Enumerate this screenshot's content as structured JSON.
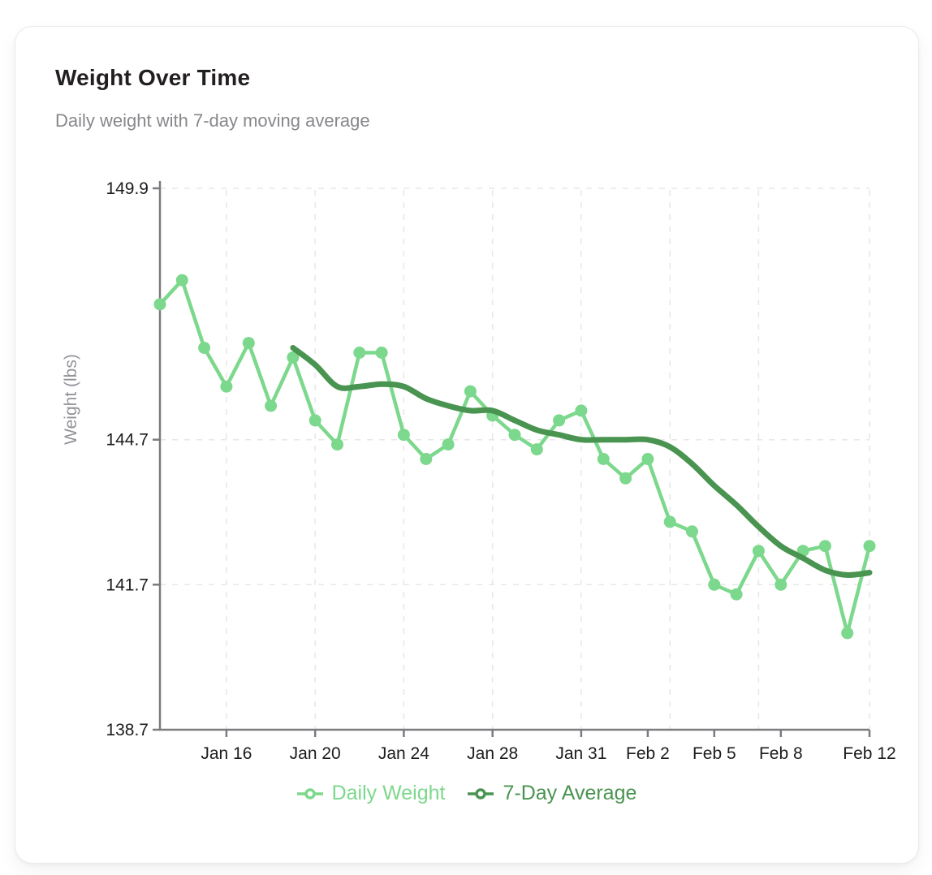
{
  "card": {
    "title": "Weight Over Time",
    "subtitle": "Daily weight with 7-day moving average"
  },
  "chart_data": {
    "type": "line",
    "title": "Weight Over Time",
    "subtitle": "Daily weight with 7-day moving average",
    "xlabel": "",
    "ylabel": "Weight (lbs)",
    "ylim": [
      138.7,
      149.9
    ],
    "y_ticks": [
      149.9,
      144.7,
      141.7,
      138.7
    ],
    "grid": true,
    "legend_position": "bottom",
    "num_points": 33,
    "x_tick_labels": [
      "Jan 16",
      "Jan 20",
      "Jan 24",
      "Jan 28",
      "Jan 31",
      "Feb 2",
      "Feb 5",
      "Feb 8",
      "Feb 12"
    ],
    "x_tick_indices": [
      3,
      7,
      11,
      15,
      19,
      22,
      25,
      28,
      32
    ],
    "x_grid_indices": [
      3,
      7,
      11,
      15,
      19,
      23,
      27,
      32
    ],
    "series": [
      {
        "name": "Daily Weight",
        "color": "#7cd88c",
        "marker": true,
        "start_index": 0,
        "values": [
          147.5,
          148.0,
          146.6,
          145.8,
          146.7,
          145.4,
          146.4,
          145.1,
          144.6,
          146.5,
          146.5,
          144.8,
          144.3,
          144.6,
          145.7,
          145.2,
          144.8,
          144.5,
          145.1,
          145.3,
          144.3,
          143.9,
          144.3,
          143.0,
          142.8,
          141.7,
          141.5,
          142.4,
          141.7,
          142.4,
          142.5,
          140.7,
          142.5
        ]
      },
      {
        "name": "7-Day Average",
        "color": "#499450",
        "marker": false,
        "start_index": 6,
        "values": [
          146.6,
          146.25,
          145.8,
          145.8,
          145.85,
          145.8,
          145.55,
          145.4,
          145.3,
          145.3,
          145.1,
          144.9,
          144.8,
          144.7,
          144.7,
          144.7,
          144.7,
          144.55,
          144.2,
          143.75,
          143.35,
          142.9,
          142.5,
          142.25,
          142.0,
          141.9,
          141.95
        ]
      }
    ]
  }
}
